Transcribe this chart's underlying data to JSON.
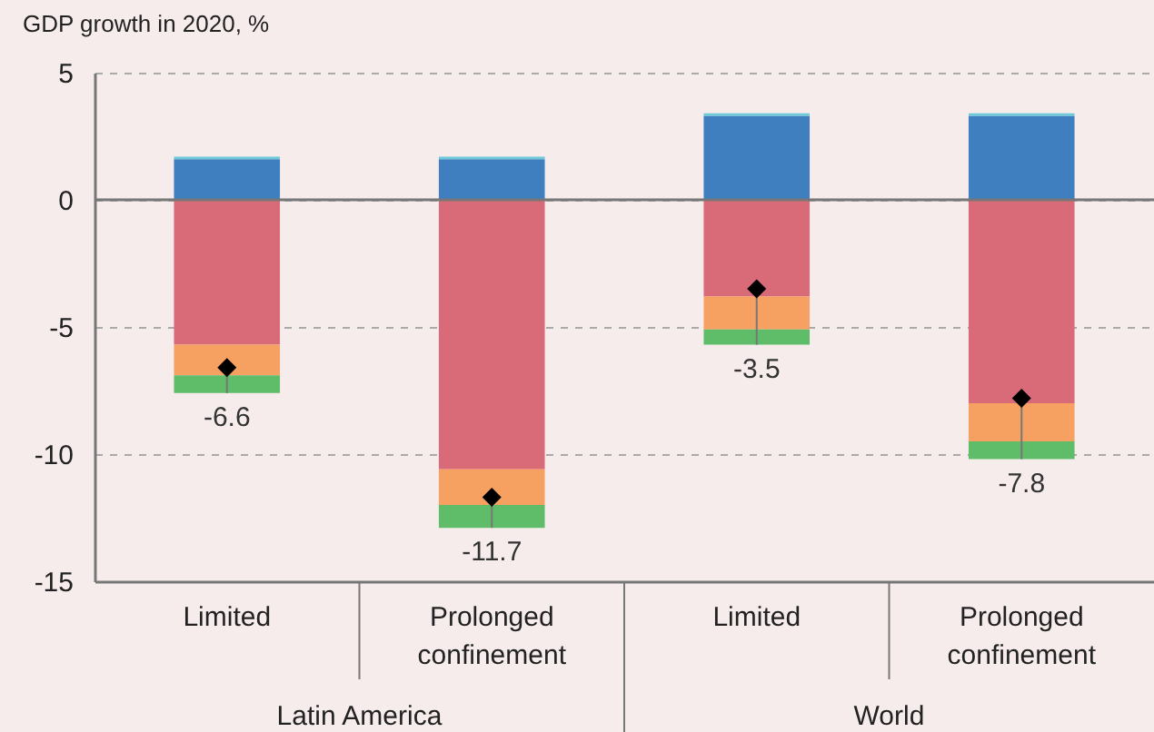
{
  "chart_data": {
    "type": "bar",
    "stacked": true,
    "ylabel": "GDP growth in 2020, %",
    "categories": [
      "Limited",
      "Prolonged confinement",
      "Limited",
      "Prolonged confinement"
    ],
    "annotations": [
      "Latin America",
      "World"
    ],
    "series": [
      {
        "color": "#3f7fc0",
        "values": [
          1.6,
          1.6,
          3.3,
          3.3
        ]
      },
      {
        "color": "#6cc9d8",
        "values": [
          0.1,
          0.1,
          0.1,
          0.1
        ]
      },
      {
        "color": "#d96b79",
        "values": [
          -5.7,
          -10.6,
          -3.8,
          -8.0
        ]
      },
      {
        "color": "#f6a062",
        "values": [
          -1.2,
          -1.4,
          -1.3,
          -1.5
        ]
      },
      {
        "color": "#5fbd6a",
        "values": [
          -0.7,
          -0.9,
          -0.6,
          -0.7
        ]
      },
      {
        "type": "scatter",
        "marker": "diamond",
        "color": "#000000",
        "values": [
          -6.6,
          -11.7,
          -3.5,
          -7.8
        ],
        "value_labels": [
          "-6.6",
          "-11.7",
          "-3.5",
          "-7.8"
        ]
      }
    ],
    "ylim": [
      -15,
      5
    ],
    "yticks": [
      -15,
      -10,
      -5,
      0,
      5
    ],
    "grid": "y",
    "ref_lines": [
      {
        "axis": "y",
        "value": 0,
        "color": "#777777"
      }
    ]
  }
}
